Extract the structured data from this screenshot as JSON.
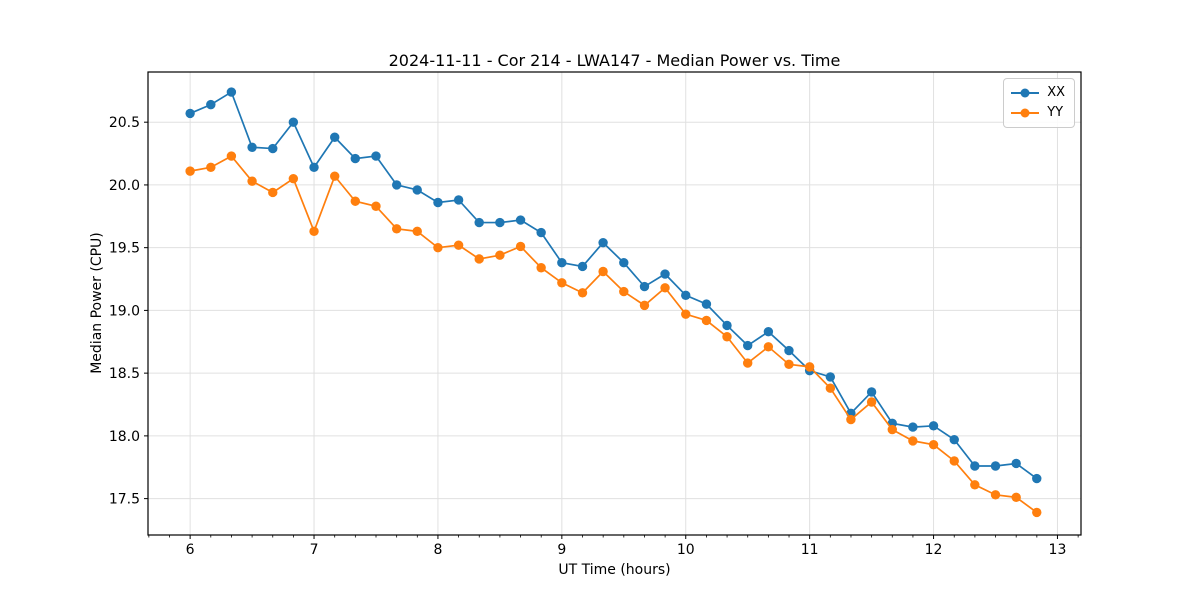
{
  "chart_data": {
    "type": "line",
    "title": "2024-11-11 - Cor 214 - LWA147 - Median Power vs. Time",
    "xlabel": "UT Time (hours)",
    "ylabel": "Median Power (CPU)",
    "xlim": [
      5.66,
      13.19
    ],
    "ylim": [
      17.21,
      20.9
    ],
    "xticks": [
      6,
      7,
      8,
      9,
      10,
      11,
      12,
      13
    ],
    "yticks": [
      17.5,
      18.0,
      18.5,
      19.0,
      19.5,
      20.0,
      20.5
    ],
    "x_minor_step": 0.16667,
    "grid": true,
    "grid_color": "#e0e0e0",
    "legend_position": "upper right",
    "x": [
      6.0,
      6.167,
      6.333,
      6.5,
      6.667,
      6.833,
      7.0,
      7.167,
      7.333,
      7.5,
      7.667,
      7.833,
      8.0,
      8.167,
      8.333,
      8.5,
      8.667,
      8.833,
      9.0,
      9.167,
      9.333,
      9.5,
      9.667,
      9.833,
      10.0,
      10.167,
      10.333,
      10.5,
      10.667,
      10.833,
      11.0,
      11.167,
      11.333,
      11.5,
      11.667,
      11.833,
      12.0,
      12.167,
      12.333,
      12.5,
      12.667,
      12.833
    ],
    "series": [
      {
        "name": "XX",
        "color": "#1f77b4",
        "values": [
          20.57,
          20.64,
          20.74,
          20.3,
          20.29,
          20.5,
          20.14,
          20.38,
          20.21,
          20.23,
          20.0,
          19.96,
          19.86,
          19.88,
          19.7,
          19.7,
          19.72,
          19.62,
          19.38,
          19.35,
          19.54,
          19.38,
          19.19,
          19.29,
          19.12,
          19.05,
          18.88,
          18.72,
          18.83,
          18.68,
          18.52,
          18.47,
          18.18,
          18.35,
          18.1,
          18.07,
          18.08,
          17.97,
          17.76,
          17.76,
          17.78,
          17.66
        ]
      },
      {
        "name": "YY",
        "color": "#ff7f0e",
        "values": [
          20.11,
          20.14,
          20.23,
          20.03,
          19.94,
          20.05,
          19.63,
          20.07,
          19.87,
          19.83,
          19.65,
          19.63,
          19.5,
          19.52,
          19.41,
          19.44,
          19.51,
          19.34,
          19.22,
          19.14,
          19.31,
          19.15,
          19.04,
          19.18,
          18.97,
          18.92,
          18.79,
          18.58,
          18.71,
          18.57,
          18.55,
          18.38,
          18.13,
          18.27,
          18.05,
          17.96,
          17.93,
          17.8,
          17.61,
          17.53,
          17.51,
          17.39
        ]
      }
    ]
  }
}
